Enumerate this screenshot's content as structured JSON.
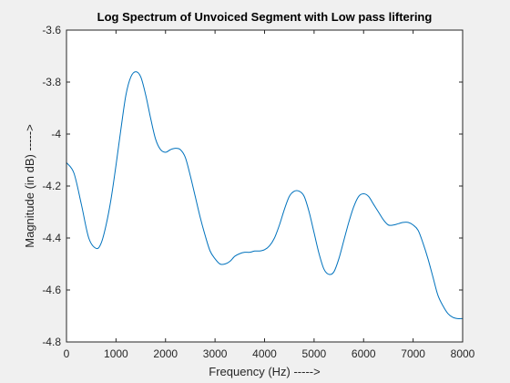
{
  "chart_data": {
    "type": "line",
    "title": "Log Spectrum of Unvoiced Segment with Low pass liftering",
    "xlabel": "Frequency (Hz) ----->",
    "ylabel": "Magnitude (in dB) ----->",
    "xlim": [
      0,
      8000
    ],
    "ylim": [
      -4.8,
      -3.6
    ],
    "xticks": [
      0,
      1000,
      2000,
      3000,
      4000,
      5000,
      6000,
      7000,
      8000
    ],
    "xtick_labels": [
      "0",
      "1000",
      "2000",
      "3000",
      "4000",
      "5000",
      "6000",
      "7000",
      "8000"
    ],
    "yticks": [
      -3.6,
      -3.8,
      -4,
      -4.2,
      -4.4,
      -4.6,
      -4.8
    ],
    "ytick_labels": [
      "-3.6",
      "-3.8",
      "-4",
      "-4.2",
      "-4.4",
      "-4.6",
      "-4.8"
    ],
    "grid": false,
    "line_color": "#0072BD",
    "series": [
      {
        "x": [
          0,
          150,
          300,
          450,
          600,
          700,
          800,
          900,
          1000,
          1100,
          1200,
          1300,
          1400,
          1500,
          1600,
          1700,
          1800,
          1900,
          2000,
          2100,
          2200,
          2300,
          2400,
          2500,
          2600,
          2700,
          2800,
          2900,
          3000,
          3100,
          3200,
          3300,
          3400,
          3500,
          3600,
          3700,
          3800,
          3900,
          4000,
          4100,
          4200,
          4300,
          4400,
          4500,
          4600,
          4700,
          4800,
          4900,
          5000,
          5100,
          5200,
          5300,
          5400,
          5500,
          5600,
          5700,
          5800,
          5900,
          6000,
          6100,
          6200,
          6300,
          6400,
          6500,
          6600,
          6700,
          6800,
          6900,
          7000,
          7100,
          7200,
          7300,
          7400,
          7500,
          7600,
          7700,
          7800,
          7900,
          8000
        ],
        "values": [
          -4.11,
          -4.15,
          -4.27,
          -4.4,
          -4.44,
          -4.42,
          -4.35,
          -4.25,
          -4.12,
          -3.98,
          -3.85,
          -3.78,
          -3.76,
          -3.78,
          -3.85,
          -3.94,
          -4.02,
          -4.06,
          -4.07,
          -4.06,
          -4.055,
          -4.06,
          -4.09,
          -4.16,
          -4.24,
          -4.32,
          -4.39,
          -4.45,
          -4.48,
          -4.5,
          -4.5,
          -4.49,
          -4.47,
          -4.46,
          -4.455,
          -4.455,
          -4.45,
          -4.45,
          -4.445,
          -4.43,
          -4.4,
          -4.35,
          -4.29,
          -4.24,
          -4.22,
          -4.22,
          -4.24,
          -4.3,
          -4.38,
          -4.46,
          -4.52,
          -4.54,
          -4.53,
          -4.48,
          -4.41,
          -4.34,
          -4.28,
          -4.24,
          -4.23,
          -4.24,
          -4.27,
          -4.3,
          -4.33,
          -4.35,
          -4.35,
          -4.345,
          -4.34,
          -4.34,
          -4.35,
          -4.37,
          -4.42,
          -4.48,
          -4.55,
          -4.62,
          -4.66,
          -4.69,
          -4.705,
          -4.71,
          -4.71
        ]
      }
    ]
  }
}
